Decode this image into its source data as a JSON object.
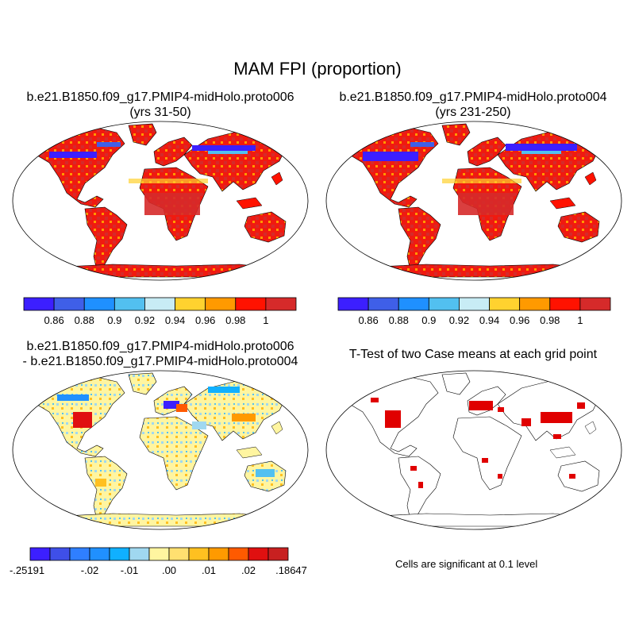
{
  "figure": {
    "title": "MAM FPI (proportion)",
    "note": "Cells are significant at 0.1 level"
  },
  "chart_data": [
    {
      "type": "heatmap",
      "panel": "case1",
      "title_line1": "b.e21.B1850.f09_g17.PMIP4-midHolo.proto006",
      "title_line2": "(yrs 31-50)",
      "colorbar": {
        "colors": [
          "#3c1fff",
          "#3f5fe8",
          "#1f90ff",
          "#52c0f0",
          "#c8ecf5",
          "#ffd22f",
          "#ff9a00",
          "#ff1200",
          "#d62a2a"
        ],
        "tick_labels": [
          "0.86",
          "0.88",
          "0.9",
          "0.92",
          "0.94",
          "0.96",
          "0.98",
          "1"
        ]
      }
    },
    {
      "type": "heatmap",
      "panel": "case2",
      "title_line1": "b.e21.B1850.f09_g17.PMIP4-midHolo.proto004",
      "title_line2": "(yrs 231-250)",
      "colorbar": {
        "colors": [
          "#3c1fff",
          "#3f5fe8",
          "#1f90ff",
          "#52c0f0",
          "#c8ecf5",
          "#ffd22f",
          "#ff9a00",
          "#ff1200",
          "#d62a2a"
        ],
        "tick_labels": [
          "0.86",
          "0.88",
          "0.9",
          "0.92",
          "0.94",
          "0.96",
          "0.98",
          "1"
        ]
      }
    },
    {
      "type": "heatmap",
      "panel": "difference",
      "title_line1": "b.e21.B1850.f09_g17.PMIP4-midHolo.proto006",
      "title_line2": "- b.e21.B1850.f09_g17.PMIP4-midHolo.proto004",
      "colorbar": {
        "colors": [
          "#3c1fff",
          "#3f4fe8",
          "#2f7fff",
          "#2090ff",
          "#10b0ff",
          "#a0d8f0",
          "#fff5a0",
          "#ffe070",
          "#ffc020",
          "#ff9a00",
          "#ff5a00",
          "#e01010",
          "#c82020"
        ],
        "tick_labels": [
          "-.25191",
          "-.02",
          "-.01",
          ".00",
          ".01",
          ".02",
          ".18647"
        ]
      }
    },
    {
      "type": "heatmap",
      "panel": "ttest",
      "title_line1": "T-Test of two Case means at each grid point",
      "title_line2": ""
    }
  ]
}
